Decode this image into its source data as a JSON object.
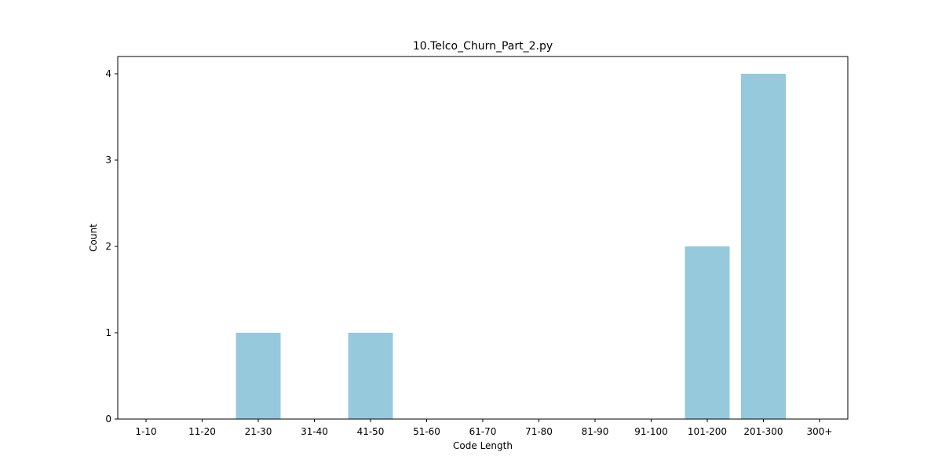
{
  "chart_data": {
    "type": "bar",
    "title": "10.Telco_Churn_Part_2.py",
    "xlabel": "Code Length",
    "ylabel": "Count",
    "categories": [
      "1-10",
      "11-20",
      "21-30",
      "31-40",
      "41-50",
      "51-60",
      "61-70",
      "71-80",
      "81-90",
      "91-100",
      "101-200",
      "201-300",
      "300+"
    ],
    "values": [
      0,
      0,
      1,
      0,
      1,
      0,
      0,
      0,
      0,
      0,
      2,
      4,
      0
    ],
    "ylim": [
      0,
      4.2
    ],
    "yticks": [
      "0",
      "1",
      "2",
      "3",
      "4"
    ],
    "bar_color": "#96c9dc",
    "grid": false,
    "legend": "none"
  }
}
